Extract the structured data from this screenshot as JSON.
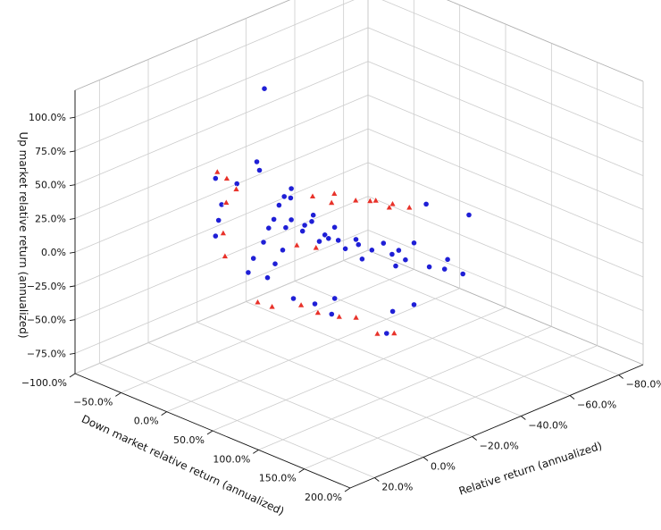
{
  "chart_data": {
    "type": "scatter",
    "projection": "3d",
    "grid": true,
    "title": "",
    "xlabel": "Relative return (annualized)",
    "ylabel": "Down market relative return (annualized)",
    "zlabel": "Up market relative return (annualized)",
    "x_ticks": [
      "−80.0%",
      "−60.0%",
      "−40.0%",
      "−20.0%",
      "0.0%",
      "20.0%"
    ],
    "y_ticks": [
      "−100.0%",
      "−50.0%",
      "0.0%",
      "50.0%",
      "100.0%",
      "150.0%",
      "200.0%"
    ],
    "z_ticks": [
      "−75.0%",
      "−50.0%",
      "−25.0%",
      "0.0%",
      "25.0%",
      "50.0%",
      "75.0%",
      "100.0%"
    ],
    "x_tick_values": [
      -80,
      -60,
      -40,
      -20,
      0,
      20
    ],
    "y_tick_values": [
      -100,
      -50,
      0,
      50,
      100,
      150,
      200
    ],
    "z_tick_values": [
      -75,
      -50,
      -25,
      0,
      25,
      50,
      75,
      100
    ],
    "xlim": [
      -90,
      30
    ],
    "ylim": [
      -100,
      200
    ],
    "zlim": [
      -90,
      120
    ],
    "series": [
      {
        "marker": "circle",
        "color": "#1f1fd6",
        "points": [
          [
            -10,
            0,
            119
          ],
          [
            -55,
            10,
            -27
          ],
          [
            -70,
            40,
            -42
          ],
          [
            -40,
            60,
            -52
          ],
          [
            -30,
            80,
            -55
          ],
          [
            -75,
            50,
            -10
          ],
          [
            -65,
            30,
            0
          ],
          [
            -5,
            5,
            70
          ],
          [
            -8,
            0,
            60
          ],
          [
            -14,
            18,
            40
          ],
          [
            -20,
            25,
            20
          ],
          [
            -25,
            30,
            5
          ],
          [
            -30,
            35,
            -5
          ],
          [
            -35,
            40,
            -15
          ],
          [
            -45,
            50,
            -25
          ],
          [
            -50,
            40,
            -20
          ],
          [
            -60,
            30,
            -25
          ],
          [
            -40,
            20,
            -10
          ],
          [
            -35,
            10,
            0
          ],
          [
            -30,
            0,
            10
          ],
          [
            -10,
            -30,
            40
          ],
          [
            -5,
            -40,
            45
          ],
          [
            0,
            -20,
            35
          ],
          [
            5,
            -10,
            30
          ],
          [
            10,
            0,
            25
          ],
          [
            -15,
            10,
            15
          ],
          [
            -20,
            15,
            10
          ],
          [
            -25,
            20,
            0
          ],
          [
            -10,
            20,
            5
          ],
          [
            -5,
            25,
            0
          ],
          [
            0,
            30,
            -5
          ],
          [
            -12,
            5,
            22
          ],
          [
            -18,
            8,
            18
          ],
          [
            -22,
            12,
            12
          ],
          [
            -28,
            18,
            2
          ],
          [
            -32,
            22,
            -4
          ],
          [
            -38,
            28,
            -10
          ],
          [
            -42,
            32,
            -16
          ],
          [
            -48,
            38,
            -22
          ],
          [
            -52,
            42,
            -28
          ],
          [
            -16,
            0,
            28
          ],
          [
            -20,
            -5,
            30
          ],
          [
            -24,
            -8,
            32
          ],
          [
            -8,
            10,
            20
          ],
          [
            -4,
            15,
            14
          ],
          [
            2,
            20,
            8
          ],
          [
            6,
            25,
            2
          ],
          [
            -58,
            52,
            -35
          ],
          [
            -62,
            58,
            -38
          ],
          [
            -68,
            62,
            -45
          ],
          [
            -45,
            70,
            -48
          ],
          [
            -20,
            50,
            -30
          ],
          [
            -15,
            60,
            -35
          ],
          [
            -10,
            55,
            -25
          ],
          [
            -5,
            45,
            -20
          ]
        ]
      },
      {
        "marker": "triangle",
        "color": "#e8322a",
        "points": [
          [
            -2,
            -30,
            55
          ],
          [
            -4,
            -25,
            50
          ],
          [
            0,
            -15,
            38
          ],
          [
            -6,
            -20,
            42
          ],
          [
            -30,
            20,
            25
          ],
          [
            -38,
            25,
            22
          ],
          [
            -42,
            30,
            20
          ],
          [
            -48,
            35,
            12
          ],
          [
            -10,
            40,
            -30
          ],
          [
            -15,
            45,
            -38
          ],
          [
            -20,
            55,
            -42
          ],
          [
            -25,
            60,
            -45
          ],
          [
            -35,
            75,
            -60
          ],
          [
            -30,
            70,
            -58
          ],
          [
            -12,
            30,
            10
          ],
          [
            -18,
            35,
            5
          ],
          [
            5,
            -5,
            22
          ],
          [
            8,
            5,
            10
          ],
          [
            -26,
            10,
            30
          ],
          [
            -33,
            15,
            28
          ],
          [
            -55,
            20,
            5
          ],
          [
            -60,
            25,
            0
          ],
          [
            -50,
            15,
            10
          ],
          [
            4,
            30,
            -20
          ],
          [
            0,
            35,
            -25
          ]
        ]
      }
    ]
  }
}
